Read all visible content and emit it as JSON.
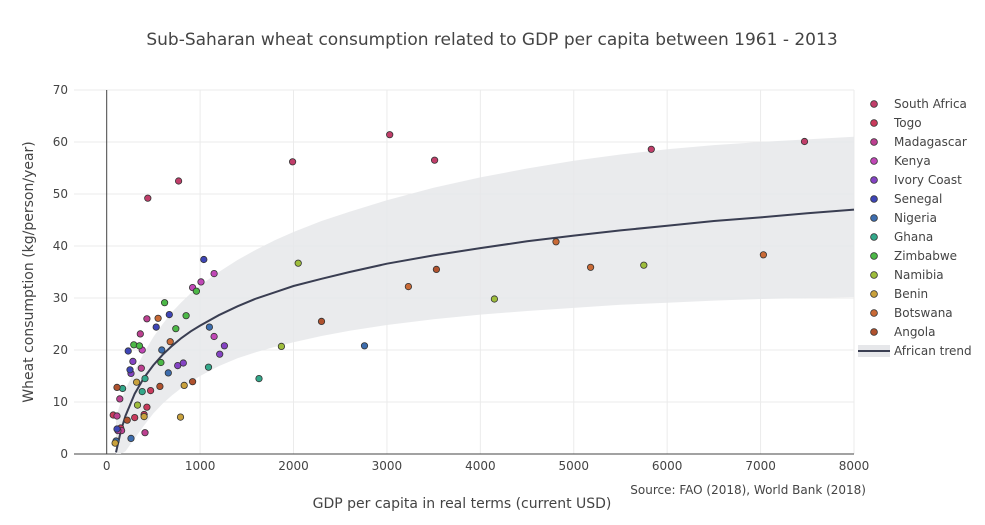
{
  "chart_data": {
    "type": "scatter",
    "title": "Sub-Saharan wheat consumption related to GDP per capita between 1961 - 2013",
    "xlabel": "GDP per capita in real terms (current USD)",
    "ylabel": "Wheat consumption (kg/person/year)",
    "source": "Source: FAO (2018), World Bank (2018)",
    "xlim": [
      -350,
      8000
    ],
    "ylim": [
      0,
      70
    ],
    "x_ticks": [
      0,
      1000,
      2000,
      3000,
      4000,
      5000,
      6000,
      7000,
      8000
    ],
    "x_tick_labels": [
      "0",
      "1000",
      "2000",
      "3000",
      "4000",
      "5000",
      "6000",
      "7000",
      "8000"
    ],
    "y_ticks": [
      0,
      10,
      20,
      30,
      40,
      50,
      60,
      70
    ],
    "y_tick_labels": [
      "0",
      "10",
      "20",
      "30",
      "40",
      "50",
      "60",
      "70"
    ],
    "grid": true,
    "legend_position": "right",
    "series": [
      {
        "name": "South Africa",
        "color": "#c13e6a",
        "points": [
          [
            3030,
            61.4
          ],
          [
            1990,
            56.2
          ],
          [
            3510,
            56.5
          ],
          [
            5830,
            58.6
          ],
          [
            7470,
            60.1
          ],
          [
            770,
            52.5
          ],
          [
            440,
            49.2
          ]
        ]
      },
      {
        "name": "Togo",
        "color": "#c93a5c",
        "points": [
          [
            70,
            7.5
          ],
          [
            150,
            5.0
          ],
          [
            300,
            7.0
          ],
          [
            400,
            7.6
          ],
          [
            430,
            9.0
          ],
          [
            470,
            12.2
          ]
        ]
      },
      {
        "name": "Madagascar",
        "color": "#bc4090",
        "points": [
          [
            110,
            7.3
          ],
          [
            140,
            10.6
          ],
          [
            160,
            4.5
          ],
          [
            410,
            4.1
          ],
          [
            370,
            16.5
          ],
          [
            360,
            23.1
          ],
          [
            430,
            26.0
          ]
        ]
      },
      {
        "name": "Kenya",
        "color": "#c047b6",
        "points": [
          [
            120,
            4.5
          ],
          [
            380,
            20.0
          ],
          [
            920,
            32.0
          ],
          [
            1150,
            34.7
          ],
          [
            1150,
            22.6
          ],
          [
            1010,
            33.1
          ]
        ]
      },
      {
        "name": "Ivory Coast",
        "color": "#8443c3",
        "points": [
          [
            260,
            15.5
          ],
          [
            280,
            17.8
          ],
          [
            760,
            17.0
          ],
          [
            1210,
            19.2
          ],
          [
            1260,
            20.8
          ],
          [
            820,
            17.5
          ]
        ]
      },
      {
        "name": "Senegal",
        "color": "#3e45b6",
        "points": [
          [
            110,
            4.8
          ],
          [
            230,
            19.8
          ],
          [
            250,
            16.2
          ],
          [
            530,
            24.4
          ],
          [
            670,
            26.8
          ],
          [
            1040,
            37.4
          ]
        ]
      },
      {
        "name": "Nigeria",
        "color": "#3d6dae",
        "points": [
          [
            100,
            2.5
          ],
          [
            260,
            3.0
          ],
          [
            590,
            20.0
          ],
          [
            660,
            15.6
          ],
          [
            1100,
            24.4
          ],
          [
            2760,
            20.8
          ]
        ]
      },
      {
        "name": "Ghana",
        "color": "#33a88a",
        "points": [
          [
            170,
            12.6
          ],
          [
            410,
            14.5
          ],
          [
            1090,
            16.7
          ],
          [
            1630,
            14.5
          ],
          [
            380,
            12.0
          ]
        ]
      },
      {
        "name": "Zimbabwe",
        "color": "#4cb847",
        "points": [
          [
            290,
            21.0
          ],
          [
            350,
            20.8
          ],
          [
            620,
            29.1
          ],
          [
            740,
            24.1
          ],
          [
            850,
            26.6
          ],
          [
            960,
            31.3
          ],
          [
            580,
            17.6
          ]
        ]
      },
      {
        "name": "Namibia",
        "color": "#9ebd3c",
        "points": [
          [
            330,
            9.4
          ],
          [
            1870,
            20.7
          ],
          [
            2050,
            36.7
          ],
          [
            4150,
            29.8
          ],
          [
            5750,
            36.3
          ]
        ]
      },
      {
        "name": "Benin",
        "color": "#c9a13c",
        "points": [
          [
            90,
            2.1
          ],
          [
            320,
            13.8
          ],
          [
            790,
            7.1
          ],
          [
            830,
            13.2
          ],
          [
            400,
            7.2
          ]
        ]
      },
      {
        "name": "Botswana",
        "color": "#c96a36",
        "points": [
          [
            550,
            26.1
          ],
          [
            680,
            21.6
          ],
          [
            3230,
            32.2
          ],
          [
            4810,
            40.8
          ],
          [
            5180,
            35.9
          ],
          [
            7030,
            38.3
          ]
        ]
      },
      {
        "name": "Angola",
        "color": "#b0522e",
        "points": [
          [
            110,
            12.8
          ],
          [
            220,
            6.5
          ],
          [
            570,
            13.0
          ],
          [
            920,
            13.9
          ],
          [
            2300,
            25.5
          ],
          [
            3530,
            35.5
          ]
        ]
      }
    ],
    "trend": {
      "name": "African trend",
      "color": "#3a3e52",
      "band_color": "#e6e7ea",
      "x": [
        100,
        150,
        200,
        300,
        400,
        500,
        600,
        700,
        800,
        900,
        1000,
        1200,
        1400,
        1600,
        1800,
        2000,
        2300,
        2600,
        3000,
        3500,
        4000,
        4500,
        5000,
        5500,
        6000,
        6500,
        7000,
        7500,
        8000
      ],
      "y": [
        0.3,
        4.3,
        7.3,
        11.6,
        14.7,
        17.1,
        19.1,
        20.8,
        22.3,
        23.6,
        24.7,
        26.7,
        28.4,
        29.9,
        31.1,
        32.3,
        33.7,
        35.0,
        36.6,
        38.2,
        39.6,
        40.9,
        42.0,
        43.0,
        43.9,
        44.8,
        45.5,
        46.3,
        47.0
      ],
      "upper": [
        7.0,
        10.0,
        12.5,
        16.0,
        19.5,
        22.5,
        25.0,
        27.3,
        29.2,
        30.9,
        32.4,
        35.0,
        37.3,
        39.3,
        41.1,
        42.7,
        44.8,
        46.6,
        48.8,
        51.2,
        53.2,
        54.9,
        56.4,
        57.6,
        58.6,
        59.4,
        60.0,
        60.5,
        61.0
      ],
      "lower": [
        0.0,
        0.0,
        0.5,
        3.0,
        5.5,
        7.8,
        9.7,
        11.3,
        12.7,
        13.9,
        15.0,
        16.9,
        18.4,
        19.6,
        20.6,
        21.5,
        22.7,
        23.7,
        24.8,
        25.9,
        26.8,
        27.5,
        28.1,
        28.7,
        29.1,
        29.5,
        29.8,
        30.0,
        30.2
      ]
    }
  }
}
